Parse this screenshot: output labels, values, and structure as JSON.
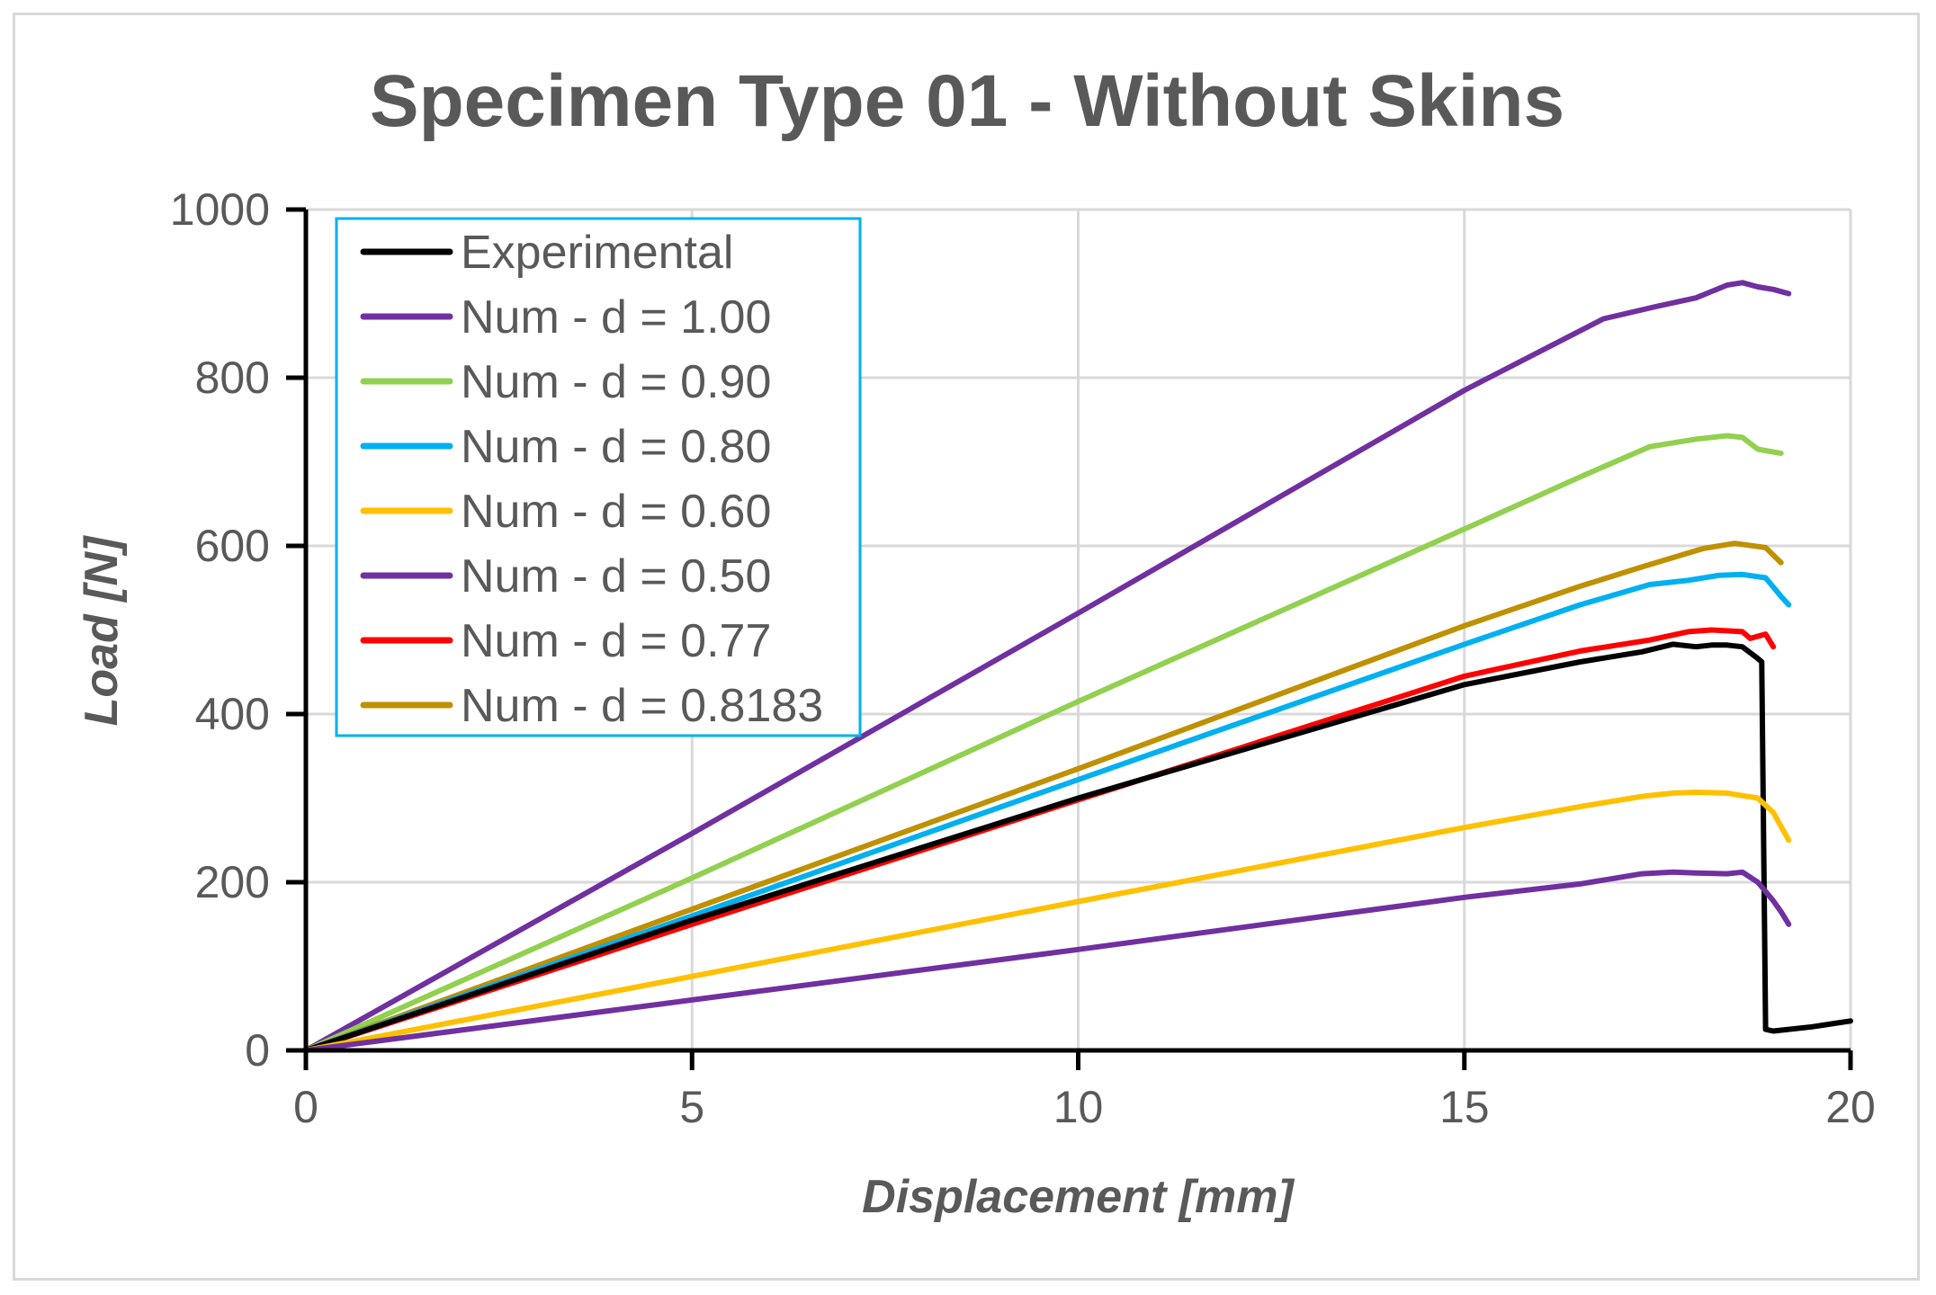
{
  "chart_data": {
    "type": "line",
    "title": "Specimen Type 01 - Without Skins",
    "xlabel": "Displacement [mm]",
    "ylabel": "Load [N]",
    "xlim": [
      0,
      20
    ],
    "ylim": [
      0,
      1000
    ],
    "xticks": [
      "0",
      "5",
      "10",
      "15",
      "20"
    ],
    "yticks": [
      "0",
      "200",
      "400",
      "600",
      "800",
      "1000"
    ],
    "xtick_values": [
      0,
      5,
      10,
      15,
      20
    ],
    "ytick_values": [
      0,
      200,
      400,
      600,
      800,
      1000
    ],
    "grid": true,
    "legend_position": "top-left",
    "series": [
      {
        "name": "Num - d = 1.00",
        "color": "#7030a0",
        "points": [
          [
            0,
            0
          ],
          [
            5,
            258
          ],
          [
            10,
            520
          ],
          [
            15,
            785
          ],
          [
            16.8,
            870
          ],
          [
            17.5,
            885
          ],
          [
            18,
            895
          ],
          [
            18.4,
            910
          ],
          [
            18.6,
            913
          ],
          [
            18.8,
            908
          ],
          [
            19,
            905
          ],
          [
            19.2,
            900
          ]
        ]
      },
      {
        "name": "Num - d = 0.90",
        "color": "#92d050",
        "points": [
          [
            0,
            0
          ],
          [
            5,
            205
          ],
          [
            10,
            415
          ],
          [
            15,
            620
          ],
          [
            16.5,
            682
          ],
          [
            17.4,
            718
          ],
          [
            18,
            727
          ],
          [
            18.4,
            731
          ],
          [
            18.6,
            729
          ],
          [
            18.8,
            715
          ],
          [
            19.1,
            710
          ]
        ]
      },
      {
        "name": "Num - d = 0.8183",
        "color": "#bf9000",
        "points": [
          [
            0,
            0
          ],
          [
            5,
            168
          ],
          [
            10,
            335
          ],
          [
            15,
            505
          ],
          [
            16.5,
            552
          ],
          [
            17.3,
            575
          ],
          [
            18.1,
            597
          ],
          [
            18.5,
            603
          ],
          [
            18.9,
            598
          ],
          [
            19.1,
            580
          ]
        ]
      },
      {
        "name": "Num - d = 0.80",
        "color": "#00b0f0",
        "points": [
          [
            0,
            0
          ],
          [
            5,
            160
          ],
          [
            10,
            322
          ],
          [
            15,
            483
          ],
          [
            16.5,
            530
          ],
          [
            17.4,
            554
          ],
          [
            17.9,
            559
          ],
          [
            18.3,
            565
          ],
          [
            18.6,
            566
          ],
          [
            18.9,
            562
          ],
          [
            19.1,
            540
          ],
          [
            19.2,
            530
          ]
        ]
      },
      {
        "name": "Num - d = 0.77",
        "color": "#ff0000",
        "points": [
          [
            0,
            0
          ],
          [
            5,
            150
          ],
          [
            10,
            298
          ],
          [
            15,
            445
          ],
          [
            16.5,
            475
          ],
          [
            17.4,
            488
          ],
          [
            17.9,
            498
          ],
          [
            18.2,
            500
          ],
          [
            18.6,
            498
          ],
          [
            18.7,
            490
          ],
          [
            18.9,
            495
          ],
          [
            19,
            480
          ]
        ]
      },
      {
        "name": "Experimental",
        "color": "#000000",
        "points": [
          [
            0,
            0
          ],
          [
            5,
            155
          ],
          [
            10,
            300
          ],
          [
            15,
            435
          ],
          [
            16.5,
            462
          ],
          [
            17.3,
            474
          ],
          [
            17.7,
            483
          ],
          [
            18,
            480
          ],
          [
            18.2,
            482
          ],
          [
            18.4,
            482
          ],
          [
            18.6,
            480
          ],
          [
            18.8,
            466
          ],
          [
            18.85,
            462
          ],
          [
            18.9,
            25
          ],
          [
            19,
            23
          ],
          [
            19.5,
            28
          ],
          [
            20,
            35
          ]
        ]
      },
      {
        "name": "Num - d = 0.60",
        "color": "#ffc000",
        "points": [
          [
            0,
            0
          ],
          [
            5,
            88
          ],
          [
            10,
            177
          ],
          [
            15,
            265
          ],
          [
            16.5,
            290
          ],
          [
            17.3,
            302
          ],
          [
            17.7,
            306
          ],
          [
            18,
            307
          ],
          [
            18.4,
            306
          ],
          [
            18.8,
            300
          ],
          [
            19,
            283
          ],
          [
            19.2,
            250
          ]
        ]
      },
      {
        "name": "Num - d = 0.50",
        "color": "#7030a0",
        "points": [
          [
            0,
            0
          ],
          [
            5,
            60
          ],
          [
            10,
            120
          ],
          [
            15,
            182
          ],
          [
            16.5,
            198
          ],
          [
            17.3,
            210
          ],
          [
            17.7,
            212
          ],
          [
            18,
            211
          ],
          [
            18.4,
            210
          ],
          [
            18.6,
            212
          ],
          [
            18.8,
            200
          ],
          [
            19,
            178
          ],
          [
            19.1,
            165
          ],
          [
            19.2,
            150
          ]
        ]
      }
    ],
    "legend": [
      {
        "label": "Experimental",
        "color": "#000000"
      },
      {
        "label": "Num - d = 1.00",
        "color": "#7030a0"
      },
      {
        "label": "Num - d = 0.90",
        "color": "#92d050"
      },
      {
        "label": "Num - d = 0.80",
        "color": "#00b0f0"
      },
      {
        "label": "Num - d = 0.60",
        "color": "#ffc000"
      },
      {
        "label": "Num - d = 0.50",
        "color": "#7030a0"
      },
      {
        "label": "Num - d = 0.77",
        "color": "#ff0000"
      },
      {
        "label": "Num - d = 0.8183",
        "color": "#bf9000"
      }
    ]
  }
}
